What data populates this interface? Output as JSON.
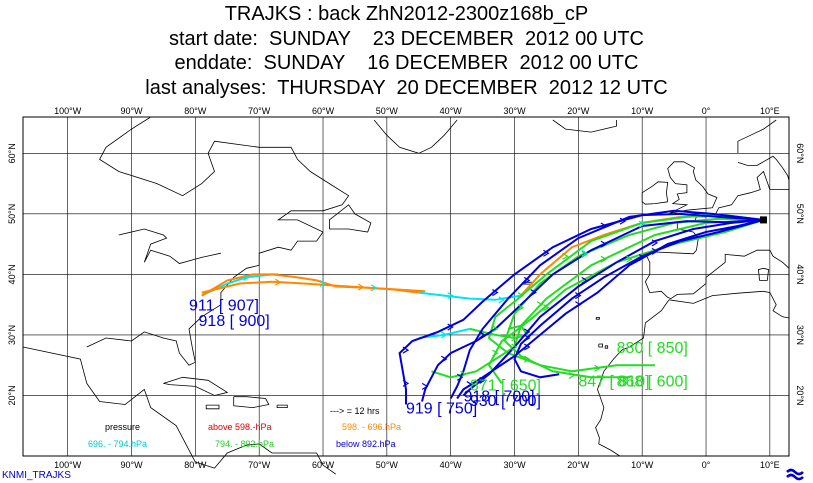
{
  "title": {
    "line1": "TRAJKS : back ZhN2012-2300z168b_cP",
    "line2": "start date:  SUNDAY    23 DECEMBER  2012 00 UTC",
    "line3": "enddate:  SUNDAY    16 DECEMBER  2012 00 UTC",
    "line4": "last analyses:  THURSDAY  20 DECEMBER  2012 12 UTC"
  },
  "axes": {
    "lon_labels": [
      "100°W",
      "90°W",
      "80°W",
      "70°W",
      "60°W",
      "50°W",
      "40°W",
      "30°W",
      "20°W",
      "10°W",
      "0°",
      "10°E"
    ],
    "lon_values": [
      -100,
      -90,
      -80,
      -70,
      -60,
      -50,
      -40,
      -30,
      -20,
      -10,
      0,
      10
    ],
    "lat_labels": [
      "60°N",
      "50°N",
      "40°N",
      "30°N",
      "20°N"
    ],
    "lat_values": [
      60,
      50,
      40,
      30,
      20
    ],
    "lon_range": [
      -107,
      13
    ],
    "lat_range": [
      10,
      66
    ]
  },
  "source_point": {
    "lon": 9,
    "lat": 49
  },
  "legend": {
    "pressure": "pressure",
    "above": "above   598.-hPa",
    "mid1": "598. -   696.hPa",
    "mid2": "696. -   794.hPa",
    "mid3": "794. -   892.hPa",
    "below": "below   892.hPa",
    "interval": "--->  = 12 hrs"
  },
  "colors": {
    "above": "#dd0000",
    "mid1": "#ff8800",
    "mid2": "#00e5ee",
    "mid3": "#22dd22",
    "below": "#0000dd",
    "land": "#000000"
  },
  "endpoint_labels": [
    {
      "text": "911 [ 907]",
      "color": "#0000dd",
      "lon": -81,
      "lat": 34
    },
    {
      "text": "918 [ 900]",
      "color": "#0000dd",
      "lon": -79.5,
      "lat": 31.5
    },
    {
      "text": "880 [ 850]",
      "color": "#22dd22",
      "lon": -14,
      "lat": 27
    },
    {
      "text": "847 [ 810]",
      "color": "#22dd22",
      "lon": -20,
      "lat": 21.5
    },
    {
      "text": "868 [ 600]",
      "color": "#22dd22",
      "lon": -14,
      "lat": 21.5
    },
    {
      "text": "871 [ 650]",
      "color": "#22dd22",
      "lon": -37,
      "lat": 20.8
    },
    {
      "text": "919 [ 750]",
      "color": "#0000dd",
      "lon": -47,
      "lat": 17
    },
    {
      "text": "918 [ 700]",
      "color": "#0000dd",
      "lon": -38,
      "lat": 19
    },
    {
      "text": "930 [ 700]",
      "color": "#0000dd",
      "lon": -37,
      "lat": 18.3
    }
  ],
  "footer": {
    "left": "KNMI_TRAJKS"
  }
}
